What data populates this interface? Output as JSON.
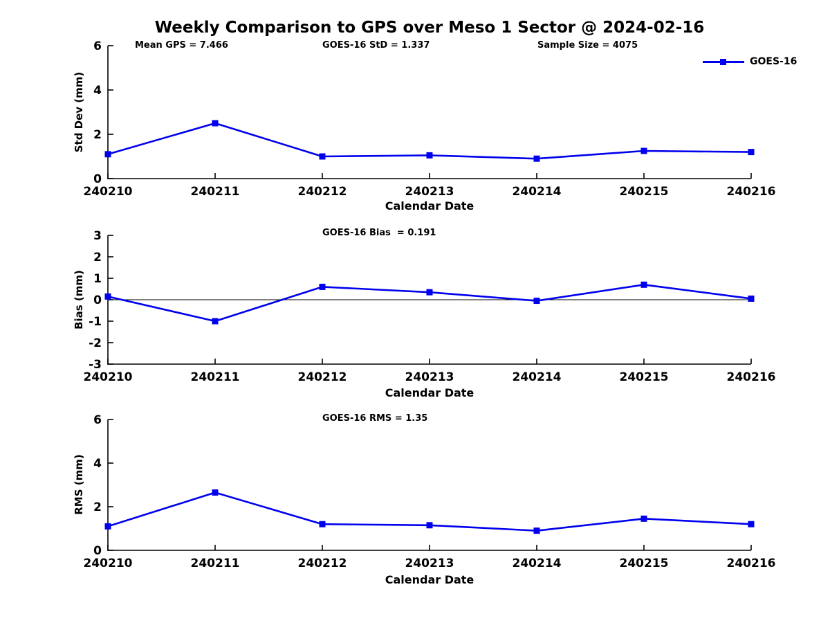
{
  "figure": {
    "title": "Weekly Comparison to GPS over Meso 1 Sector @ 2024-02-16",
    "background_color": "#ffffff",
    "text_color": "#000000"
  },
  "legend": {
    "label": "GOES-16",
    "color": "#0000EE",
    "marker": "square",
    "position": "top-right"
  },
  "chart_data": [
    {
      "type": "line",
      "id": "std-dev",
      "categories": [
        "240210",
        "240211",
        "240212",
        "240213",
        "240214",
        "240215",
        "240216"
      ],
      "series": [
        {
          "name": "GOES-16",
          "values": [
            1.1,
            2.5,
            1.0,
            1.05,
            0.9,
            1.25,
            1.2
          ]
        }
      ],
      "annotations": [
        "Mean GPS = 7.466",
        "GOES-16 StD = 1.337",
        "Sample Size = 4075"
      ],
      "xlabel": "Calendar Date",
      "ylabel": "Std Dev (mm)",
      "ylim": [
        0,
        6
      ],
      "yticks": [
        0,
        2,
        4,
        6
      ],
      "grid": false,
      "zero_line": false,
      "line_color": "#0000EE",
      "marker": "square"
    },
    {
      "type": "line",
      "id": "bias",
      "categories": [
        "240210",
        "240211",
        "240212",
        "240213",
        "240214",
        "240215",
        "240216"
      ],
      "series": [
        {
          "name": "GOES-16",
          "values": [
            0.15,
            -1.0,
            0.6,
            0.35,
            -0.05,
            0.7,
            0.05
          ]
        }
      ],
      "annotations": [
        "GOES-16 Bias  = 0.191"
      ],
      "xlabel": "Calendar Date",
      "ylabel": "Bias (mm)",
      "ylim": [
        -3,
        3
      ],
      "yticks": [
        3,
        2,
        1,
        0,
        -1,
        -2,
        -3
      ],
      "grid": false,
      "zero_line": true,
      "line_color": "#0000EE",
      "marker": "square"
    },
    {
      "type": "line",
      "id": "rms",
      "categories": [
        "240210",
        "240211",
        "240212",
        "240213",
        "240214",
        "240215",
        "240216"
      ],
      "series": [
        {
          "name": "GOES-16",
          "values": [
            1.1,
            2.65,
            1.2,
            1.15,
            0.9,
            1.45,
            1.2
          ]
        }
      ],
      "annotations": [
        "GOES-16 RMS = 1.35"
      ],
      "xlabel": "Calendar Date",
      "ylabel": "RMS (mm)",
      "ylim": [
        0,
        6
      ],
      "yticks": [
        0,
        2,
        4,
        6
      ],
      "grid": false,
      "zero_line": false,
      "line_color": "#0000EE",
      "marker": "square"
    }
  ]
}
